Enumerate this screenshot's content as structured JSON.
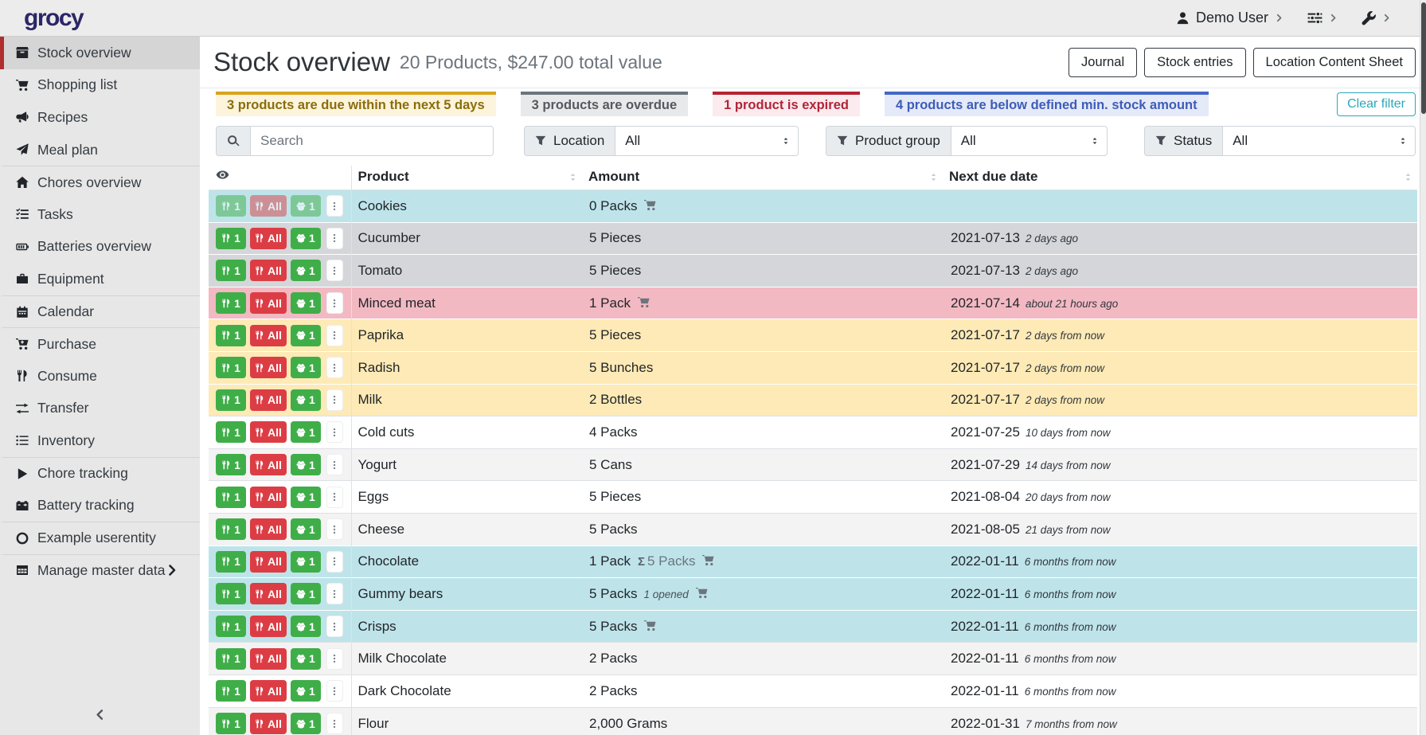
{
  "topbar": {
    "logo": "grocy",
    "user_icon": "user-icon",
    "user_label": "Demo User",
    "menu_icons": [
      "sliders-icon",
      "wrench-icon"
    ],
    "chevron_icon": "chevron-right-icon"
  },
  "sidebar": {
    "items": [
      {
        "label": "Stock overview",
        "icon": "stock-overview-icon",
        "active": true
      },
      {
        "label": "Shopping list",
        "icon": "shopping-cart-icon"
      },
      {
        "label": "Recipes",
        "icon": "recipes-icon"
      },
      {
        "label": "Meal plan",
        "icon": "paper-plane-icon"
      },
      {
        "label": "Chores overview",
        "icon": "home-icon",
        "divider": true
      },
      {
        "label": "Tasks",
        "icon": "tasks-icon"
      },
      {
        "label": "Batteries overview",
        "icon": "battery-icon"
      },
      {
        "label": "Equipment",
        "icon": "briefcase-icon"
      },
      {
        "label": "Calendar",
        "icon": "calendar-icon",
        "divider": true
      },
      {
        "label": "Purchase",
        "icon": "cart-plus-icon",
        "divider": true
      },
      {
        "label": "Consume",
        "icon": "utensils-icon"
      },
      {
        "label": "Transfer",
        "icon": "exchange-icon"
      },
      {
        "label": "Inventory",
        "icon": "list-icon"
      },
      {
        "label": "Chore tracking",
        "icon": "play-icon",
        "divider": true
      },
      {
        "label": "Battery tracking",
        "icon": "car-battery-icon"
      },
      {
        "label": "Example userentity",
        "icon": "circle-icon",
        "divider": true
      },
      {
        "label": "Manage master data",
        "icon": "table-icon",
        "divider": true,
        "chevron": true
      }
    ],
    "collapse_icon": "chevron-left-icon"
  },
  "page": {
    "title": "Stock overview",
    "subtitle": "20 Products, $247.00 total value",
    "actions": [
      "Journal",
      "Stock entries",
      "Location Content Sheet"
    ]
  },
  "alerts": [
    {
      "type": "warning",
      "text": "3 products are due within the next 5 days"
    },
    {
      "type": "secondary",
      "text": "3 products are overdue"
    },
    {
      "type": "danger",
      "text": "1 product is expired"
    },
    {
      "type": "info",
      "text": "4 products are below defined min. stock amount"
    }
  ],
  "clear_filter_label": "Clear filter",
  "filters": {
    "search_placeholder": "Search",
    "search_icon": "search-icon",
    "filter_icon": "funnel-icon",
    "selects": [
      {
        "label": "Location",
        "value": "All"
      },
      {
        "label": "Product group",
        "value": "All"
      },
      {
        "label": "Status",
        "value": "All"
      }
    ]
  },
  "table": {
    "eye_icon": "eye-icon",
    "columns": [
      "Product",
      "Amount",
      "Next due date"
    ],
    "sigma_label": "Σ",
    "row_buttons": [
      {
        "name": "consume-one-button",
        "label": "1",
        "icon": "utensils-icon",
        "color": "green"
      },
      {
        "name": "consume-all-button",
        "label": "All",
        "icon": "utensils-icon",
        "color": "red"
      },
      {
        "name": "open-one-button",
        "label": "1",
        "icon": "box-open-icon",
        "color": "green"
      }
    ],
    "rows": [
      {
        "product": "Cookies",
        "amount": "0 Packs",
        "cart": true,
        "date": "",
        "date_note": "",
        "highlight": "info",
        "disabled": true
      },
      {
        "product": "Cucumber",
        "amount": "5 Pieces",
        "cart": false,
        "date": "2021-07-13",
        "date_note": "2 days ago",
        "highlight": "secondary"
      },
      {
        "product": "Tomato",
        "amount": "5 Pieces",
        "cart": false,
        "date": "2021-07-13",
        "date_note": "2 days ago",
        "highlight": "secondary"
      },
      {
        "product": "Minced meat",
        "amount": "1 Pack",
        "cart": true,
        "date": "2021-07-14",
        "date_note": "about 21 hours ago",
        "highlight": "danger"
      },
      {
        "product": "Paprika",
        "amount": "5 Pieces",
        "cart": false,
        "date": "2021-07-17",
        "date_note": "2 days from now",
        "highlight": "warning"
      },
      {
        "product": "Radish",
        "amount": "5 Bunches",
        "cart": false,
        "date": "2021-07-17",
        "date_note": "2 days from now",
        "highlight": "warning"
      },
      {
        "product": "Milk",
        "amount": "2 Bottles",
        "cart": false,
        "date": "2021-07-17",
        "date_note": "2 days from now",
        "highlight": "warning"
      },
      {
        "product": "Cold cuts",
        "amount": "4 Packs",
        "cart": false,
        "date": "2021-07-25",
        "date_note": "10 days from now",
        "highlight": "none"
      },
      {
        "product": "Yogurt",
        "amount": "5 Cans",
        "cart": false,
        "date": "2021-07-29",
        "date_note": "14 days from now",
        "highlight": "stripe"
      },
      {
        "product": "Eggs",
        "amount": "5 Pieces",
        "cart": false,
        "date": "2021-08-04",
        "date_note": "20 days from now",
        "highlight": "none"
      },
      {
        "product": "Cheese",
        "amount": "5 Packs",
        "cart": false,
        "date": "2021-08-05",
        "date_note": "21 days from now",
        "highlight": "stripe"
      },
      {
        "product": "Chocolate",
        "amount": "1 Pack",
        "amount_sum": "5 Packs",
        "cart": true,
        "date": "2022-01-11",
        "date_note": "6 months from now",
        "highlight": "info"
      },
      {
        "product": "Gummy bears",
        "amount": "5 Packs",
        "amount_opened": "1 opened",
        "cart": true,
        "date": "2022-01-11",
        "date_note": "6 months from now",
        "highlight": "info"
      },
      {
        "product": "Crisps",
        "amount": "5 Packs",
        "cart": true,
        "date": "2022-01-11",
        "date_note": "6 months from now",
        "highlight": "info"
      },
      {
        "product": "Milk Chocolate",
        "amount": "2 Packs",
        "cart": false,
        "date": "2022-01-11",
        "date_note": "6 months from now",
        "highlight": "stripe"
      },
      {
        "product": "Dark Chocolate",
        "amount": "2 Packs",
        "cart": false,
        "date": "2022-01-11",
        "date_note": "6 months from now",
        "highlight": "none"
      },
      {
        "product": "Flour",
        "amount": "2,000 Grams",
        "cart": false,
        "date": "2022-01-31",
        "date_note": "7 months from now",
        "highlight": "stripe"
      }
    ]
  },
  "colors": {
    "brand_logo": "#2b2766",
    "active_sidebar_border": "#b02e2e",
    "alert_warning_border": "#d7a41c",
    "alert_secondary_border": "#6c757d",
    "alert_danger_border": "#b52333",
    "alert_info_border": "#4568c6",
    "row_info_bg": "#bee4ea",
    "row_secondary_bg": "#d4d6d9",
    "row_danger_bg": "#f3b9c3",
    "row_warning_bg": "#fdeab6",
    "button_green": "#3fae49",
    "button_red": "#dc3d45",
    "clear_filter_accent": "#2aa7bb"
  }
}
